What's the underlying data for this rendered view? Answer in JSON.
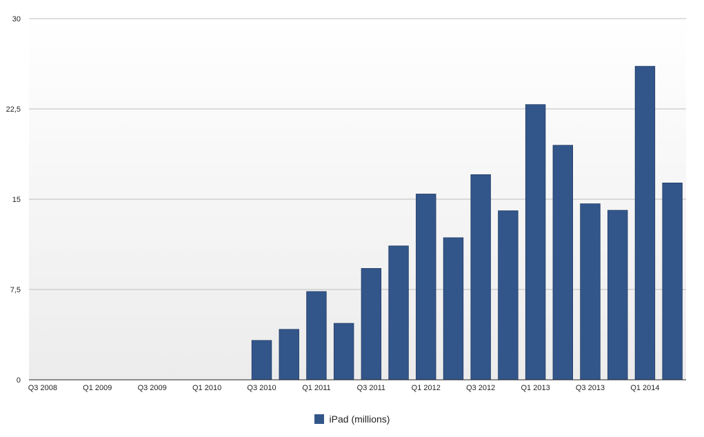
{
  "chart_data": {
    "type": "bar",
    "x": [
      "Q3 2008",
      "Q4 2008",
      "Q1 2009",
      "Q2 2009",
      "Q3 2009",
      "Q4 2009",
      "Q1 2010",
      "Q2 2010",
      "Q3 2010",
      "Q4 2010",
      "Q1 2011",
      "Q2 2011",
      "Q3 2011",
      "Q4 2011",
      "Q1 2012",
      "Q2 2012",
      "Q3 2012",
      "Q4 2012",
      "Q1 2013",
      "Q2 2013",
      "Q3 2013",
      "Q4 2013",
      "Q1 2014",
      "Q2 2014"
    ],
    "x_tick_labels": [
      "Q3 2008",
      "Q1 2009",
      "Q3 2009",
      "Q1 2010",
      "Q3 2010",
      "Q1 2011",
      "Q3 2011",
      "Q1 2012",
      "Q3 2012",
      "Q1 2013",
      "Q3 2013",
      "Q1 2014"
    ],
    "series": [
      {
        "name": "iPad (millions)",
        "color": "#33568a",
        "values": [
          0,
          0,
          0,
          0,
          0,
          0,
          0,
          0,
          3.27,
          4.19,
          7.33,
          4.69,
          9.25,
          11.12,
          15.43,
          11.8,
          17.04,
          14.04,
          22.86,
          19.48,
          14.62,
          14.08,
          26.04,
          16.35
        ]
      }
    ],
    "y_tick_labels": [
      "0",
      "7,5",
      "15",
      "22,5",
      "30"
    ],
    "ylim": [
      0,
      30
    ],
    "grid": true,
    "legend": "bottom-center"
  }
}
